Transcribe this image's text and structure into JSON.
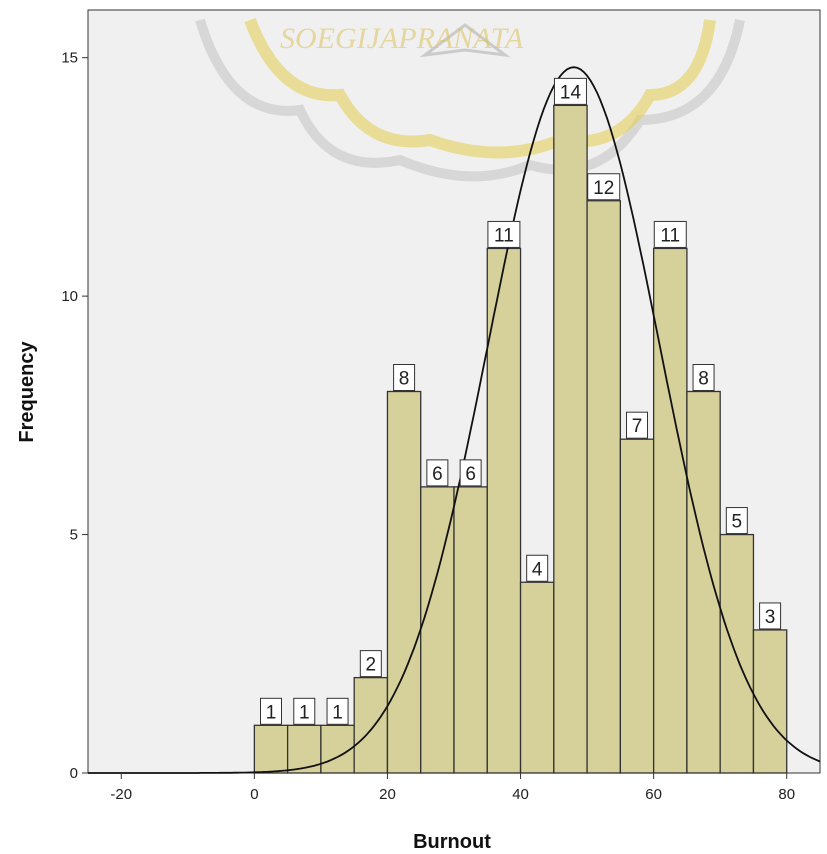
{
  "chart_data": {
    "type": "bar",
    "subtype": "histogram",
    "xlabel": "Burnout",
    "ylabel": "Frequency",
    "xlim": [
      -25,
      85
    ],
    "ylim": [
      0,
      16
    ],
    "xticks": [
      -20,
      0,
      20,
      40,
      60,
      80
    ],
    "yticks": [
      0,
      5,
      10,
      15
    ],
    "bins": [
      {
        "start": 0,
        "end": 5,
        "value": 1
      },
      {
        "start": 5,
        "end": 10,
        "value": 1
      },
      {
        "start": 10,
        "end": 15,
        "value": 1
      },
      {
        "start": 15,
        "end": 20,
        "value": 2
      },
      {
        "start": 20,
        "end": 25,
        "value": 8
      },
      {
        "start": 25,
        "end": 30,
        "value": 6
      },
      {
        "start": 30,
        "end": 35,
        "value": 6
      },
      {
        "start": 35,
        "end": 40,
        "value": 11
      },
      {
        "start": 40,
        "end": 45,
        "value": 4
      },
      {
        "start": 45,
        "end": 50,
        "value": 14
      },
      {
        "start": 50,
        "end": 55,
        "value": 12
      },
      {
        "start": 55,
        "end": 60,
        "value": 7
      },
      {
        "start": 60,
        "end": 65,
        "value": 11
      },
      {
        "start": 65,
        "end": 70,
        "value": 8
      },
      {
        "start": 70,
        "end": 75,
        "value": 5
      },
      {
        "start": 75,
        "end": 80,
        "value": 3
      }
    ],
    "normal_curve": {
      "mean": 48,
      "sd": 12.9,
      "peak": 14.8
    },
    "grid": false,
    "colors": {
      "bar_fill": "#d6d09a",
      "bar_stroke": "#333333",
      "plot_bg": "#f0f0f0",
      "curve": "#111111"
    }
  },
  "watermark": {
    "text": "SOEGIJAPRANATA"
  }
}
